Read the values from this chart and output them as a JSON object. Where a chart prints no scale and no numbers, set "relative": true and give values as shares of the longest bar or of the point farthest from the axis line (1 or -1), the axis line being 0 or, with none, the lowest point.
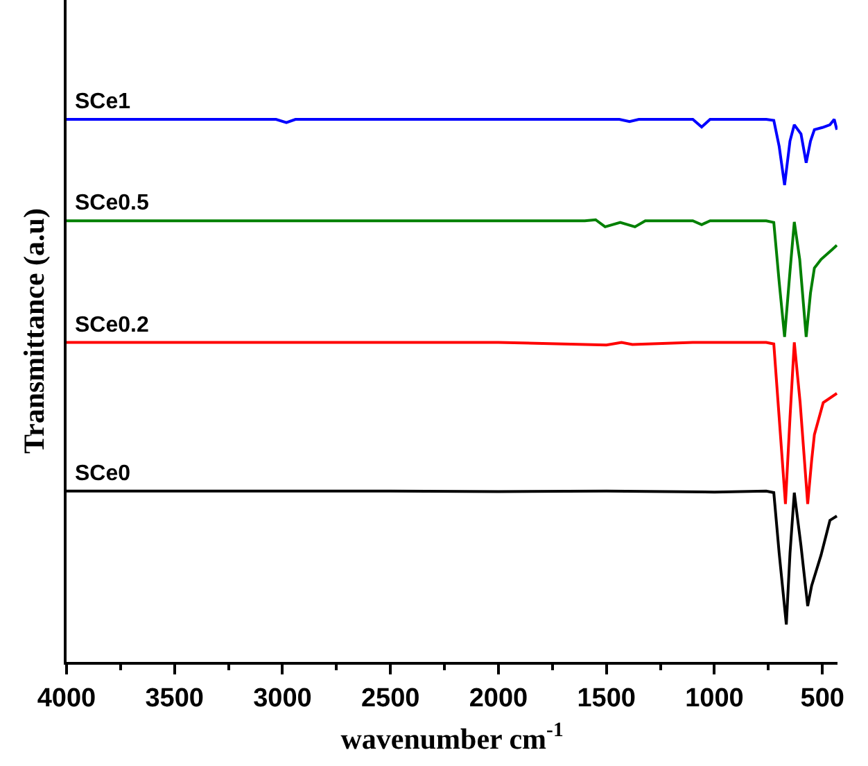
{
  "chart_data": {
    "type": "line",
    "relative": true,
    "xlabel": "wavenumber cm$^{-1}$",
    "ylabel": "Transmittance (a.u)",
    "xlim": [
      4000,
      430
    ],
    "xticks": [
      4000,
      {
        "value": 3750,
        "label": null
      },
      3500,
      {
        "value": 3250,
        "label": null
      },
      3000,
      {
        "value": 2750,
        "label": null
      },
      2500,
      {
        "value": 2250,
        "label": null
      },
      2000,
      {
        "value": 1750,
        "label": null
      },
      1500,
      {
        "value": 1250,
        "label": null
      },
      1000,
      {
        "value": 750,
        "label": null
      },
      500
    ],
    "grid": false,
    "legend": false,
    "marker": "none",
    "line_style": "solid",
    "tick_labels": "x",
    "series": [
      {
        "name": "SCe1",
        "color": "#0000ff",
        "x": [
          4000,
          3500,
          3030,
          2982,
          2940,
          2500,
          2000,
          1440,
          1393,
          1350,
          1100,
          1059,
          1020,
          760,
          725,
          700,
          675,
          650,
          630,
          599,
          575,
          555,
          537,
          500,
          465,
          445,
          433
        ],
        "values": [
          1.0,
          1.0,
          1.0,
          0.994,
          1.0,
          1.0,
          1.0,
          1.0,
          0.996,
          1.0,
          1.0,
          0.986,
          1.0,
          1.0,
          0.998,
          0.95,
          0.879,
          0.96,
          0.99,
          0.973,
          0.92,
          0.96,
          0.981,
          0.985,
          0.99,
          1.0,
          0.981
        ]
      },
      {
        "name": "SCe0.5",
        "color": "#008000",
        "x": [
          4000,
          3500,
          3000,
          2500,
          2000,
          1600,
          1550,
          1506,
          1436,
          1368,
          1320,
          1100,
          1059,
          1020,
          760,
          725,
          700,
          675,
          650,
          630,
          605,
          575,
          555,
          537,
          506,
          455,
          433
        ],
        "values": [
          0.813,
          0.813,
          0.813,
          0.813,
          0.813,
          0.813,
          0.815,
          0.802,
          0.81,
          0.802,
          0.813,
          0.813,
          0.806,
          0.813,
          0.813,
          0.81,
          0.7,
          0.599,
          0.72,
          0.811,
          0.742,
          0.599,
          0.68,
          0.726,
          0.742,
          0.76,
          0.768
        ]
      },
      {
        "name": "SCe0.2",
        "color": "#ff0000",
        "x": [
          4000,
          3500,
          3000,
          2500,
          2000,
          1500,
          1430,
          1380,
          1100,
          760,
          725,
          700,
          671,
          650,
          630,
          603,
          568,
          550,
          537,
          496,
          433
        ],
        "values": [
          0.589,
          0.589,
          0.589,
          0.589,
          0.589,
          0.584,
          0.589,
          0.585,
          0.589,
          0.589,
          0.586,
          0.45,
          0.291,
          0.45,
          0.589,
          0.478,
          0.291,
          0.37,
          0.419,
          0.478,
          0.495
        ]
      },
      {
        "name": "SCe0",
        "color": "#000000",
        "x": [
          4000,
          3500,
          3000,
          2500,
          2000,
          1500,
          1000,
          760,
          725,
          700,
          667,
          650,
          630,
          599,
          568,
          550,
          506,
          465,
          433
        ],
        "values": [
          0.315,
          0.315,
          0.315,
          0.315,
          0.314,
          0.315,
          0.313,
          0.315,
          0.312,
          0.2,
          0.069,
          0.2,
          0.312,
          0.214,
          0.103,
          0.14,
          0.197,
          0.261,
          0.269
        ]
      }
    ]
  }
}
